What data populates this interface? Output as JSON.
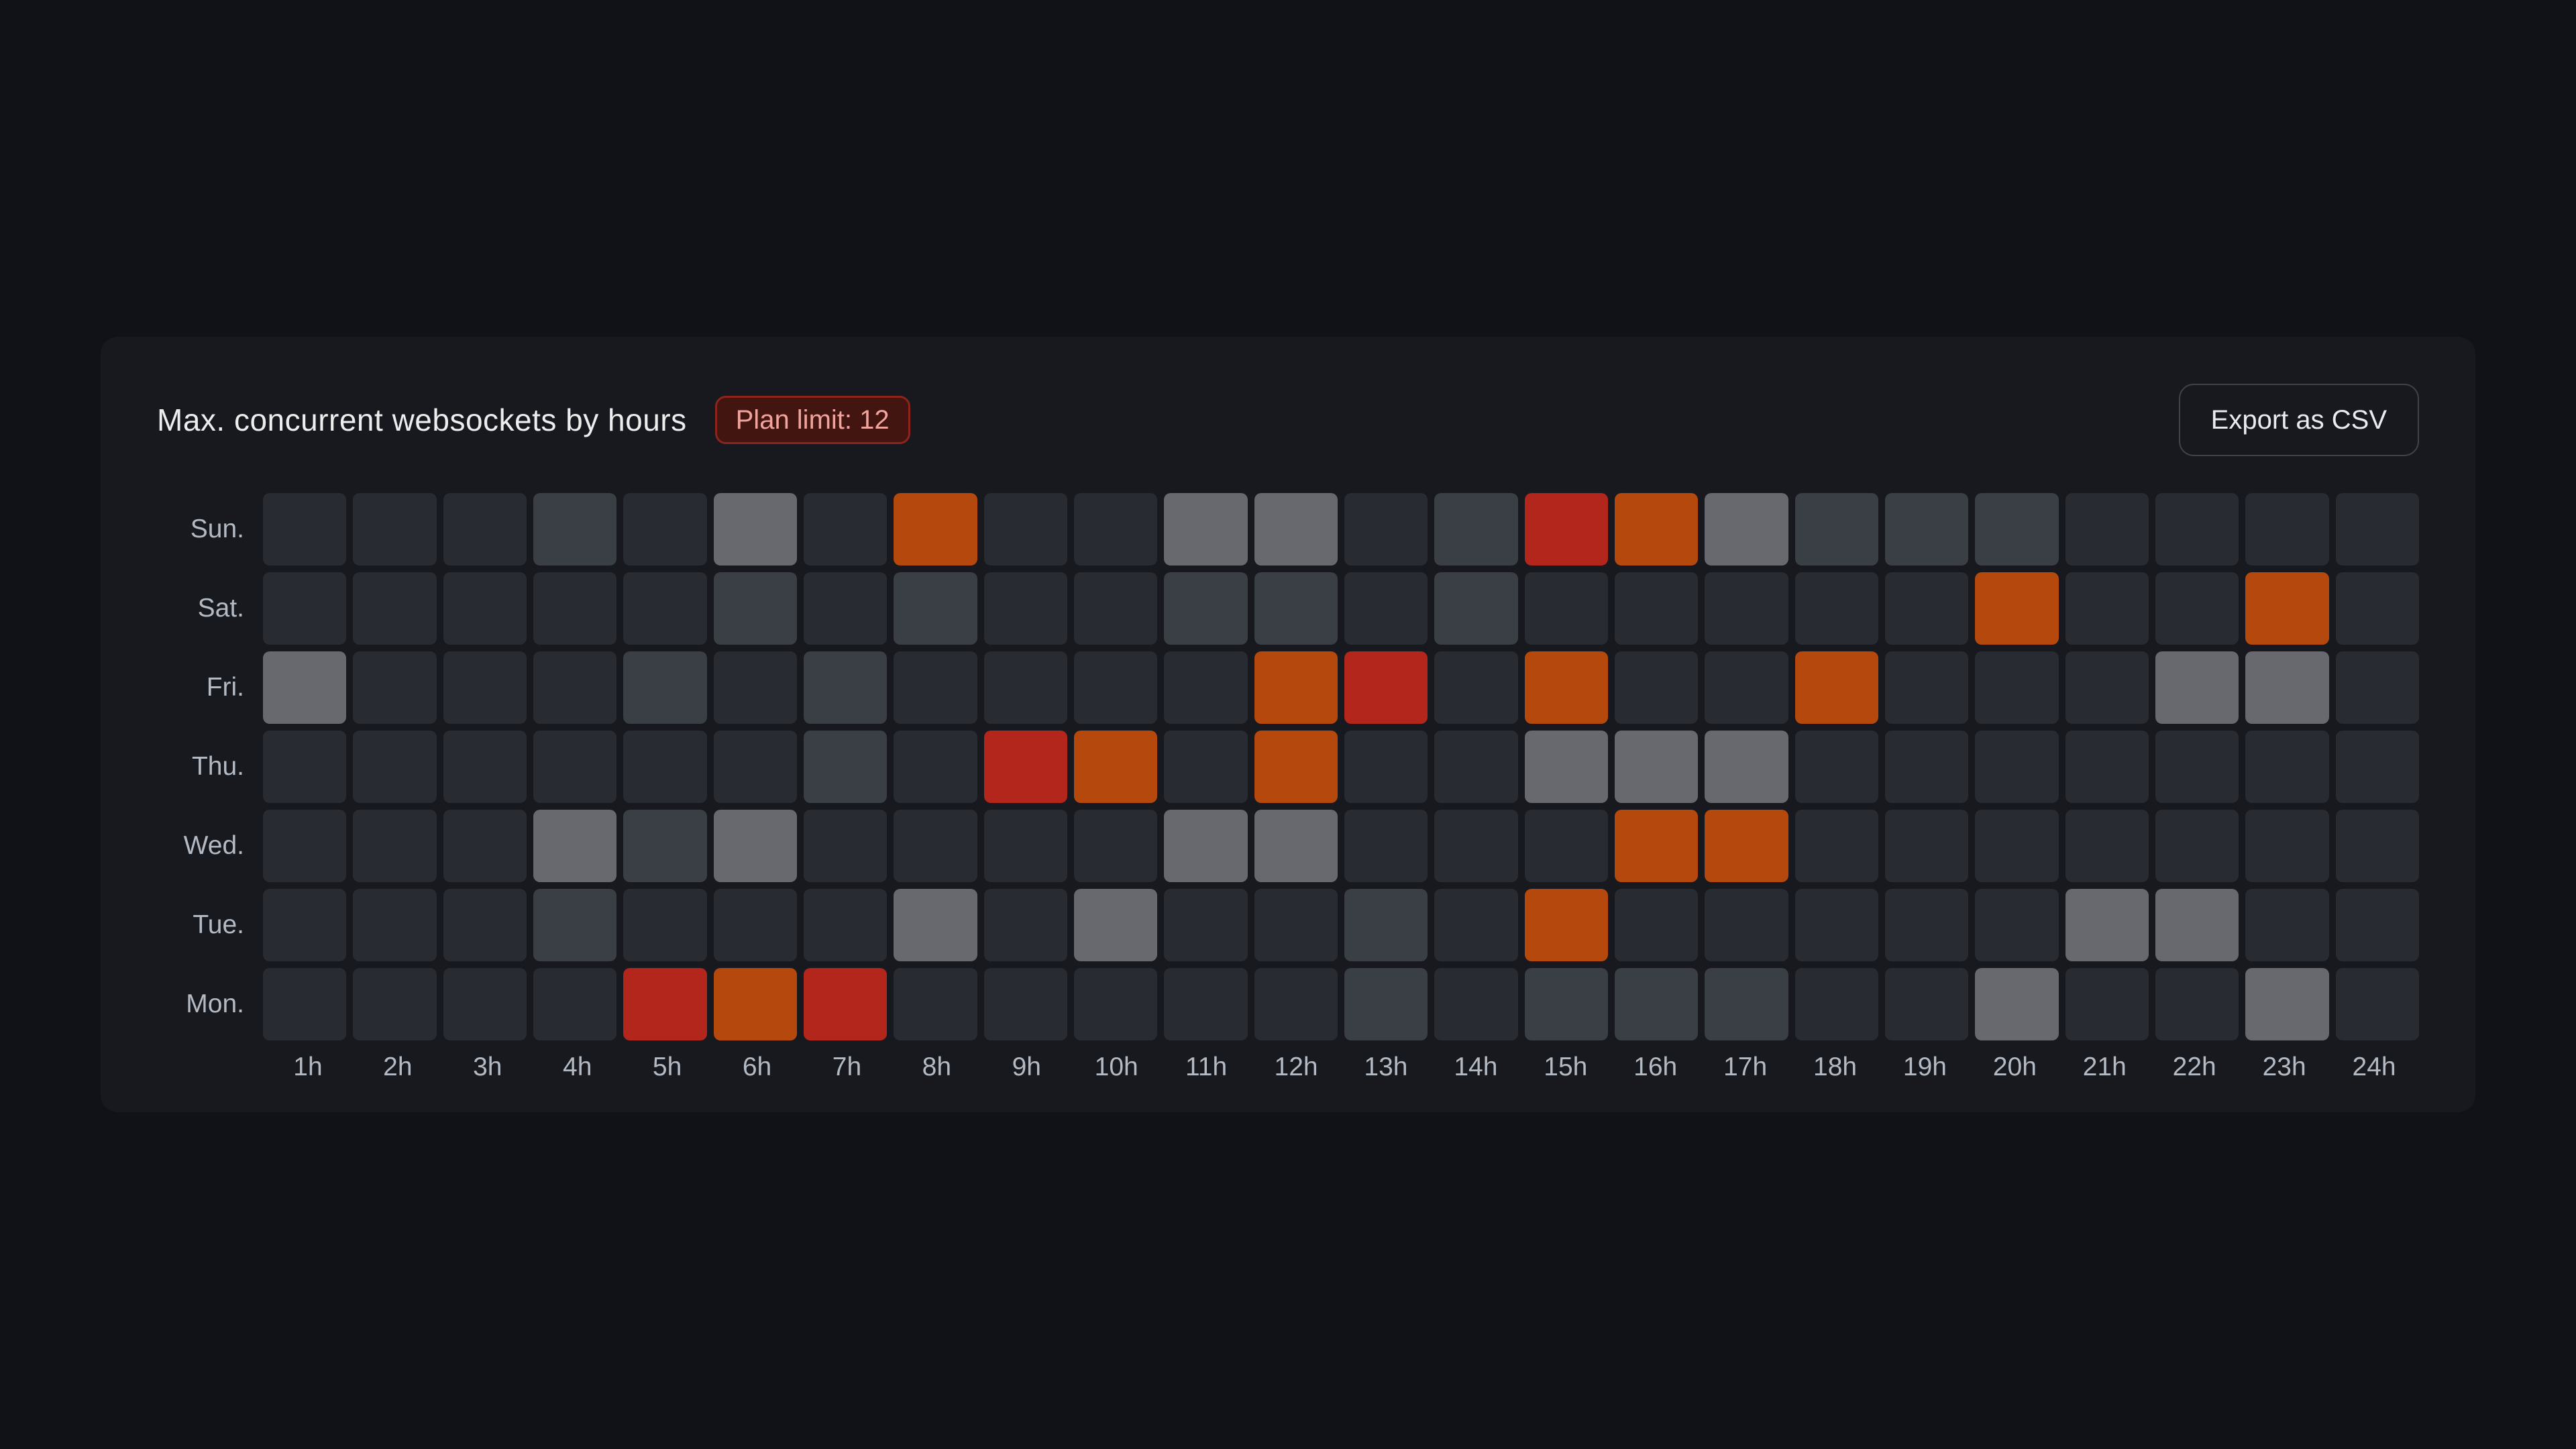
{
  "header": {
    "title": "Max. concurrent websockets by hours",
    "badge": {
      "label": "Plan limit: 12",
      "bg": "#431511",
      "border": "#8c241c",
      "text_color": "#f1a49d"
    },
    "export_button_label": "Export as CSV"
  },
  "colors": {
    "page_bg": "#111217",
    "card_bg": "#17191f",
    "title_text": "#ededee",
    "axis_text": "#b4bac3",
    "button_border": "#3e444c",
    "button_text": "#e9ebee"
  },
  "chart_data": {
    "type": "heatmap",
    "title": "Max. concurrent websockets by hours",
    "plan_limit": 12,
    "x_labels": [
      "1h",
      "2h",
      "3h",
      "4h",
      "5h",
      "6h",
      "7h",
      "8h",
      "9h",
      "10h",
      "11h",
      "12h",
      "13h",
      "14h",
      "15h",
      "16h",
      "17h",
      "18h",
      "19h",
      "20h",
      "21h",
      "22h",
      "23h",
      "24h"
    ],
    "y_labels": [
      "Sun.",
      "Sat.",
      "Fri.",
      "Thu.",
      "Wed.",
      "Tue.",
      "Mon."
    ],
    "legend_position": "none",
    "grid": false,
    "levels": [
      {
        "code": 0,
        "name": "low",
        "color": "#282b31"
      },
      {
        "code": 1,
        "name": "elevated",
        "color": "#3a3e45"
      },
      {
        "code": 2,
        "name": "high",
        "color": "#67696e"
      },
      {
        "code": 3,
        "name": "at-plan-limit",
        "color": "#b5480c"
      },
      {
        "code": 4,
        "name": "over-plan-limit",
        "color": "#b2261c"
      }
    ],
    "values": [
      [
        0,
        0,
        0,
        1,
        0,
        2,
        0,
        3,
        0,
        0,
        2,
        2,
        0,
        1,
        4,
        3,
        2,
        1,
        1,
        1,
        0,
        0,
        0,
        0
      ],
      [
        0,
        0,
        0,
        0,
        0,
        1,
        0,
        1,
        0,
        0,
        1,
        1,
        0,
        1,
        0,
        0,
        0,
        0,
        0,
        3,
        0,
        0,
        3,
        0
      ],
      [
        2,
        0,
        0,
        0,
        1,
        0,
        1,
        0,
        0,
        0,
        0,
        3,
        4,
        0,
        3,
        0,
        0,
        3,
        0,
        0,
        0,
        2,
        2,
        0
      ],
      [
        0,
        0,
        0,
        0,
        0,
        0,
        1,
        0,
        4,
        3,
        0,
        3,
        0,
        0,
        2,
        2,
        2,
        0,
        0,
        0,
        0,
        0,
        0,
        0
      ],
      [
        0,
        0,
        0,
        2,
        1,
        2,
        0,
        0,
        0,
        0,
        2,
        2,
        0,
        0,
        0,
        3,
        3,
        0,
        0,
        0,
        0,
        0,
        0,
        0
      ],
      [
        0,
        0,
        0,
        1,
        0,
        0,
        0,
        2,
        0,
        2,
        0,
        0,
        1,
        0,
        3,
        0,
        0,
        0,
        0,
        0,
        2,
        2,
        0,
        0
      ],
      [
        0,
        0,
        0,
        0,
        4,
        3,
        4,
        0,
        0,
        0,
        0,
        0,
        1,
        0,
        1,
        1,
        1,
        0,
        0,
        2,
        0,
        0,
        2,
        0
      ]
    ]
  }
}
